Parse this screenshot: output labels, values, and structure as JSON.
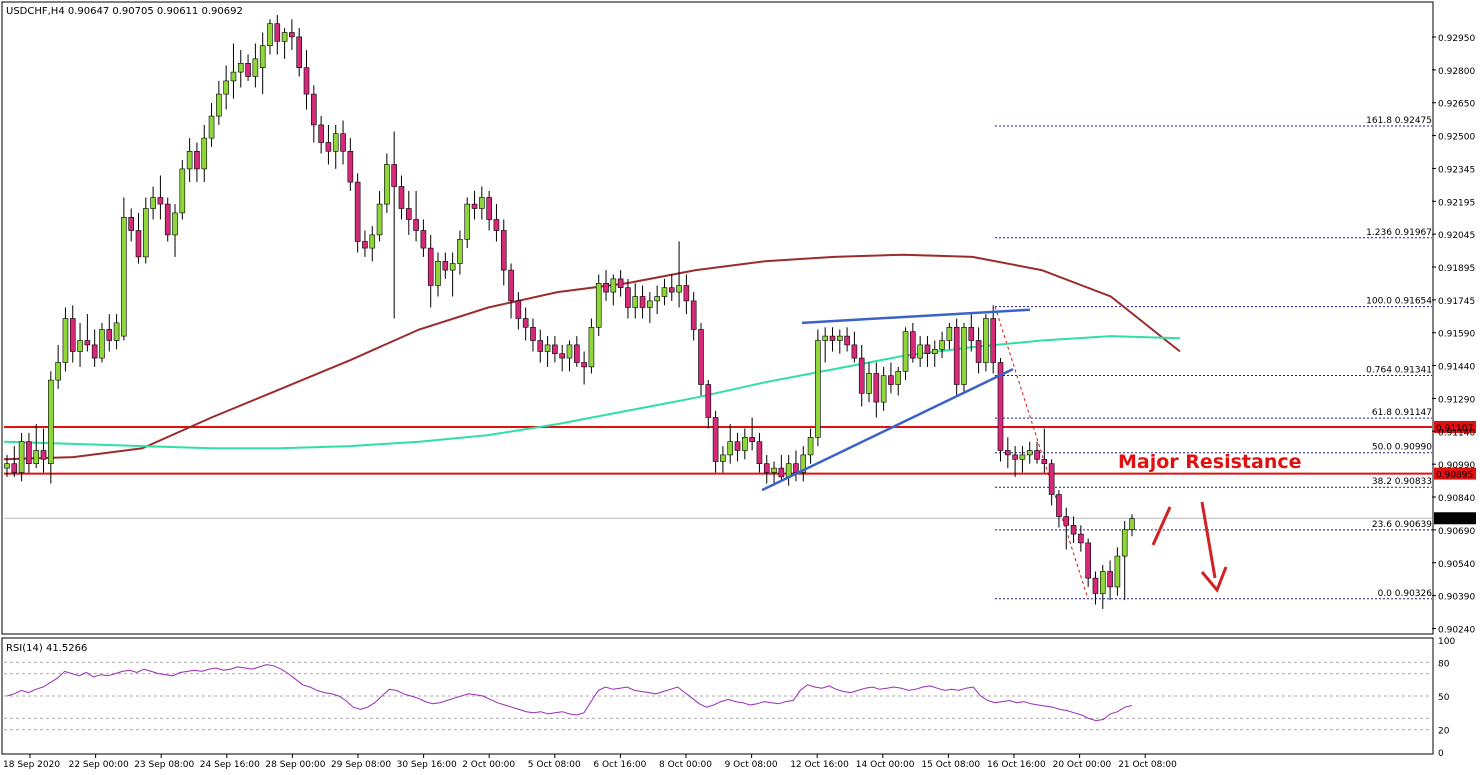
{
  "symbol_header": "USDCHF,H4  0.90647 0.90705 0.90611 0.90692",
  "rsi_header": "RSI(14) 41.5266",
  "colors": {
    "bull": "#8ed63a",
    "bear": "#d6297a",
    "ma_fast": "#30e0a0",
    "ma_slow": "#9b2c2c",
    "resistance": "#e01010",
    "trendline": "#3a62c8",
    "fib": "#1a1a8c",
    "rsi": "#9a2ab8",
    "arrow": "#d42020"
  },
  "annotation": {
    "major_resistance": "Major Resistance"
  },
  "chart_data": {
    "type": "candlestick",
    "symbol": "USDCHF",
    "timeframe": "H4",
    "ylim": [
      0.90175,
      0.93025
    ],
    "y_ticks": [
      "0.92950",
      "0.92800",
      "0.92650",
      "0.92500",
      "0.92345",
      "0.92195",
      "0.92045",
      "0.91895",
      "0.91745",
      "0.91590",
      "0.91440",
      "0.91290",
      "0.91140",
      "0.90990",
      "0.90840",
      "0.90690",
      "0.90540",
      "0.90390",
      "0.90240"
    ],
    "x_labels": [
      "18 Sep 2020",
      "22 Sep 00:00",
      "23 Sep 08:00",
      "24 Sep 16:00",
      "28 Sep 00:00",
      "29 Sep 08:00",
      "30 Sep 16:00",
      "2 Oct 00:00",
      "5 Oct 08:00",
      "6 Oct 16:00",
      "8 Oct 00:00",
      "9 Oct 08:00",
      "12 Oct 16:00",
      "14 Oct 00:00",
      "15 Oct 08:00",
      "16 Oct 16:00",
      "20 Oct 00:00",
      "21 Oct 08:00"
    ],
    "current_price": "0.90692",
    "candles": [
      [
        0.9092,
        0.9098,
        0.9088,
        0.9094
      ],
      [
        0.9094,
        0.9102,
        0.9088,
        0.909
      ],
      [
        0.909,
        0.9108,
        0.9086,
        0.9104
      ],
      [
        0.9104,
        0.9108,
        0.909,
        0.9094
      ],
      [
        0.9094,
        0.9112,
        0.9092,
        0.91
      ],
      [
        0.91,
        0.911,
        0.909,
        0.9096
      ],
      [
        0.9094,
        0.9136,
        0.9085,
        0.9132
      ],
      [
        0.9132,
        0.9148,
        0.9128,
        0.914
      ],
      [
        0.914,
        0.9165,
        0.9136,
        0.916
      ],
      [
        0.916,
        0.9166,
        0.914,
        0.9145
      ],
      [
        0.9145,
        0.9158,
        0.9138,
        0.915
      ],
      [
        0.915,
        0.9162,
        0.9145,
        0.9148
      ],
      [
        0.9148,
        0.9155,
        0.9138,
        0.9142
      ],
      [
        0.9142,
        0.9158,
        0.914,
        0.9155
      ],
      [
        0.9155,
        0.9162,
        0.9145,
        0.915
      ],
      [
        0.915,
        0.9162,
        0.9146,
        0.9158
      ],
      [
        0.9152,
        0.9215,
        0.915,
        0.9206
      ],
      [
        0.9206,
        0.921,
        0.9195,
        0.92
      ],
      [
        0.92,
        0.9208,
        0.9185,
        0.9188
      ],
      [
        0.9188,
        0.9215,
        0.9185,
        0.921
      ],
      [
        0.921,
        0.922,
        0.9205,
        0.9215
      ],
      [
        0.9215,
        0.9225,
        0.9205,
        0.9212
      ],
      [
        0.9212,
        0.9215,
        0.9195,
        0.9198
      ],
      [
        0.9198,
        0.9212,
        0.9188,
        0.9208
      ],
      [
        0.9208,
        0.9232,
        0.9205,
        0.9228
      ],
      [
        0.9228,
        0.9242,
        0.9222,
        0.9236
      ],
      [
        0.9236,
        0.924,
        0.9222,
        0.9228
      ],
      [
        0.9228,
        0.9248,
        0.9222,
        0.9242
      ],
      [
        0.9242,
        0.9258,
        0.9238,
        0.9252
      ],
      [
        0.9252,
        0.9268,
        0.9248,
        0.9262
      ],
      [
        0.9262,
        0.9275,
        0.9255,
        0.9268
      ],
      [
        0.9268,
        0.9285,
        0.926,
        0.9272
      ],
      [
        0.9272,
        0.9282,
        0.9265,
        0.9276
      ],
      [
        0.9276,
        0.928,
        0.9268,
        0.927
      ],
      [
        0.927,
        0.9285,
        0.9265,
        0.9278
      ],
      [
        0.9274,
        0.929,
        0.9262,
        0.9284
      ],
      [
        0.9284,
        0.9296,
        0.928,
        0.9294
      ],
      [
        0.9294,
        0.9298,
        0.928,
        0.9286
      ],
      [
        0.9286,
        0.9292,
        0.9278,
        0.929
      ],
      [
        0.929,
        0.9296,
        0.9282,
        0.9288
      ],
      [
        0.9288,
        0.9292,
        0.927,
        0.9274
      ],
      [
        0.9274,
        0.9282,
        0.9255,
        0.9262
      ],
      [
        0.9262,
        0.9266,
        0.924,
        0.9248
      ],
      [
        0.9248,
        0.9252,
        0.9235,
        0.924
      ],
      [
        0.924,
        0.9248,
        0.923,
        0.9236
      ],
      [
        0.9236,
        0.9248,
        0.9228,
        0.9244
      ],
      [
        0.9244,
        0.925,
        0.923,
        0.9236
      ],
      [
        0.9236,
        0.9242,
        0.9218,
        0.9222
      ],
      [
        0.9222,
        0.9226,
        0.919,
        0.9195
      ],
      [
        0.9195,
        0.92,
        0.9188,
        0.9192
      ],
      [
        0.9192,
        0.9202,
        0.9186,
        0.9198
      ],
      [
        0.9198,
        0.9218,
        0.9195,
        0.9212
      ],
      [
        0.9212,
        0.9235,
        0.9208,
        0.923
      ],
      [
        0.923,
        0.9245,
        0.916,
        0.922
      ],
      [
        0.922,
        0.9225,
        0.9205,
        0.921
      ],
      [
        0.921,
        0.9218,
        0.9198,
        0.9205
      ],
      [
        0.9205,
        0.9218,
        0.9195,
        0.92
      ],
      [
        0.92,
        0.9205,
        0.9188,
        0.9192
      ],
      [
        0.9192,
        0.9198,
        0.9165,
        0.9175
      ],
      [
        0.9175,
        0.919,
        0.917,
        0.9186
      ],
      [
        0.9186,
        0.919,
        0.9178,
        0.9182
      ],
      [
        0.9182,
        0.919,
        0.917,
        0.9185
      ],
      [
        0.9185,
        0.92,
        0.918,
        0.9196
      ],
      [
        0.9196,
        0.9215,
        0.9192,
        0.9212
      ],
      [
        0.9212,
        0.9218,
        0.9205,
        0.921
      ],
      [
        0.921,
        0.922,
        0.9205,
        0.9215
      ],
      [
        0.9215,
        0.9218,
        0.92,
        0.9205
      ],
      [
        0.9205,
        0.9212,
        0.9195,
        0.92
      ],
      [
        0.92,
        0.9205,
        0.9175,
        0.9182
      ],
      [
        0.9182,
        0.9185,
        0.916,
        0.9168
      ],
      [
        0.9168,
        0.9172,
        0.9155,
        0.916
      ],
      [
        0.916,
        0.9165,
        0.915,
        0.9156
      ],
      [
        0.9156,
        0.916,
        0.9145,
        0.915
      ],
      [
        0.915,
        0.9155,
        0.914,
        0.9145
      ],
      [
        0.9145,
        0.9152,
        0.9138,
        0.9148
      ],
      [
        0.9148,
        0.9152,
        0.914,
        0.9144
      ],
      [
        0.9144,
        0.9148,
        0.9136,
        0.9142
      ],
      [
        0.9142,
        0.915,
        0.9136,
        0.9148
      ],
      [
        0.9148,
        0.9152,
        0.9138,
        0.914
      ],
      [
        0.914,
        0.9145,
        0.913,
        0.9138
      ],
      [
        0.9138,
        0.916,
        0.9135,
        0.9156
      ],
      [
        0.9156,
        0.918,
        0.9152,
        0.9176
      ],
      [
        0.9176,
        0.9182,
        0.9168,
        0.9172
      ],
      [
        0.9172,
        0.918,
        0.9166,
        0.9178
      ],
      [
        0.9178,
        0.9182,
        0.917,
        0.9174
      ],
      [
        0.9174,
        0.9178,
        0.916,
        0.9165
      ],
      [
        0.9165,
        0.9176,
        0.916,
        0.917
      ],
      [
        0.917,
        0.9175,
        0.916,
        0.9165
      ],
      [
        0.9165,
        0.9172,
        0.9158,
        0.9168
      ],
      [
        0.9168,
        0.9175,
        0.9162,
        0.917
      ],
      [
        0.917,
        0.9178,
        0.9166,
        0.9174
      ],
      [
        0.9174,
        0.918,
        0.9168,
        0.9172
      ],
      [
        0.9172,
        0.9195,
        0.9165,
        0.9175
      ],
      [
        0.9175,
        0.918,
        0.9162,
        0.9168
      ],
      [
        0.9168,
        0.9172,
        0.915,
        0.9155
      ],
      [
        0.9155,
        0.9158,
        0.9125,
        0.913
      ],
      [
        0.913,
        0.9132,
        0.911,
        0.9115
      ],
      [
        0.9115,
        0.9118,
        0.909,
        0.9095
      ],
      [
        0.9095,
        0.9102,
        0.909,
        0.9098
      ],
      [
        0.9098,
        0.9112,
        0.9094,
        0.9104
      ],
      [
        0.9104,
        0.9108,
        0.9095,
        0.91
      ],
      [
        0.91,
        0.911,
        0.9096,
        0.9106
      ],
      [
        0.9106,
        0.9115,
        0.91,
        0.9104
      ],
      [
        0.9104,
        0.9108,
        0.909,
        0.9094
      ],
      [
        0.9094,
        0.9098,
        0.9085,
        0.909
      ],
      [
        0.909,
        0.9095,
        0.9084,
        0.9092
      ],
      [
        0.9092,
        0.9098,
        0.9086,
        0.9088
      ],
      [
        0.9088,
        0.9098,
        0.9084,
        0.9094
      ],
      [
        0.9094,
        0.91,
        0.9086,
        0.909
      ],
      [
        0.909,
        0.9102,
        0.9086,
        0.9098
      ],
      [
        0.9098,
        0.911,
        0.9094,
        0.9106
      ],
      [
        0.9106,
        0.9155,
        0.9102,
        0.915
      ],
      [
        0.915,
        0.9156,
        0.914,
        0.9152
      ],
      [
        0.9152,
        0.9156,
        0.9145,
        0.915
      ],
      [
        0.915,
        0.9155,
        0.9144,
        0.9152
      ],
      [
        0.9152,
        0.9156,
        0.9145,
        0.9148
      ],
      [
        0.9148,
        0.9154,
        0.914,
        0.9142
      ],
      [
        0.9142,
        0.9148,
        0.912,
        0.9126
      ],
      [
        0.9126,
        0.914,
        0.9122,
        0.9135
      ],
      [
        0.9135,
        0.914,
        0.9115,
        0.9122
      ],
      [
        0.9122,
        0.9138,
        0.9118,
        0.9134
      ],
      [
        0.9134,
        0.914,
        0.9126,
        0.913
      ],
      [
        0.913,
        0.9138,
        0.9125,
        0.9136
      ],
      [
        0.9136,
        0.9156,
        0.9132,
        0.9154
      ],
      [
        0.9154,
        0.9158,
        0.914,
        0.9142
      ],
      [
        0.9142,
        0.9152,
        0.9138,
        0.9148
      ],
      [
        0.9148,
        0.9152,
        0.9138,
        0.9144
      ],
      [
        0.9144,
        0.915,
        0.9138,
        0.9146
      ],
      [
        0.9146,
        0.9154,
        0.9142,
        0.915
      ],
      [
        0.915,
        0.9158,
        0.9146,
        0.9156
      ],
      [
        0.9156,
        0.916,
        0.9125,
        0.913
      ],
      [
        0.913,
        0.9158,
        0.9126,
        0.9156
      ],
      [
        0.9156,
        0.9162,
        0.9145,
        0.915
      ],
      [
        0.915,
        0.9156,
        0.9135,
        0.914
      ],
      [
        0.914,
        0.9162,
        0.9136,
        0.916
      ],
      [
        0.916,
        0.9166,
        0.9135,
        0.914
      ],
      [
        0.914,
        0.9142,
        0.9095,
        0.91
      ],
      [
        0.91,
        0.9106,
        0.9092,
        0.9098
      ],
      [
        0.9098,
        0.9102,
        0.9088,
        0.9096
      ],
      [
        0.9096,
        0.9102,
        0.909,
        0.9098
      ],
      [
        0.9098,
        0.9104,
        0.9094,
        0.91
      ],
      [
        0.91,
        0.9104,
        0.9094,
        0.9096
      ],
      [
        0.9096,
        0.911,
        0.909,
        0.9094
      ],
      [
        0.9094,
        0.9096,
        0.9075,
        0.908
      ],
      [
        0.908,
        0.9082,
        0.9065,
        0.907
      ],
      [
        0.907,
        0.9074,
        0.9055,
        0.9066
      ],
      [
        0.9066,
        0.907,
        0.9058,
        0.9062
      ],
      [
        0.9062,
        0.9066,
        0.9054,
        0.9058
      ],
      [
        0.9058,
        0.906,
        0.9038,
        0.9042
      ],
      [
        0.9042,
        0.9045,
        0.903,
        0.9035
      ],
      [
        0.9035,
        0.9048,
        0.9028,
        0.9045
      ],
      [
        0.9045,
        0.905,
        0.9032,
        0.9038
      ],
      [
        0.9038,
        0.9056,
        0.9034,
        0.9052
      ],
      [
        0.9052,
        0.9068,
        0.9032,
        0.9064
      ],
      [
        0.9064,
        0.9071,
        0.9061,
        0.9069
      ]
    ],
    "rsi_levels": [
      80,
      70,
      50,
      30,
      20
    ],
    "rsi_axis_ticks": [
      "100",
      "80",
      "50",
      "20",
      "0"
    ],
    "rsi_values": [
      50,
      52,
      55,
      53,
      56,
      58,
      62,
      66,
      72,
      70,
      68,
      71,
      67,
      69,
      68,
      70,
      72,
      73,
      71,
      74,
      72,
      70,
      69,
      68,
      71,
      72,
      73,
      72,
      74,
      75,
      73,
      74,
      76,
      75,
      74,
      76,
      78,
      77,
      74,
      70,
      65,
      60,
      58,
      55,
      53,
      52,
      50,
      46,
      40,
      38,
      40,
      44,
      50,
      56,
      55,
      52,
      50,
      48,
      45,
      43,
      44,
      46,
      48,
      50,
      52,
      51,
      50,
      47,
      44,
      42,
      40,
      38,
      36,
      35,
      36,
      34,
      35,
      36,
      34,
      33,
      35,
      45,
      55,
      58,
      56,
      57,
      58,
      55,
      54,
      53,
      52,
      54,
      56,
      58,
      53,
      48,
      43,
      40,
      42,
      45,
      47,
      45,
      44,
      42,
      43,
      45,
      44,
      43,
      45,
      46,
      55,
      60,
      58,
      57,
      59,
      56,
      54,
      53,
      55,
      57,
      58,
      56,
      57,
      58,
      57,
      55,
      56,
      58,
      59,
      57,
      55,
      56,
      55,
      57,
      58,
      50,
      46,
      44,
      45,
      46,
      44,
      45,
      43,
      42,
      41,
      40,
      38,
      37,
      35,
      33,
      30,
      28,
      29,
      34,
      36,
      40,
      41.5
    ],
    "ma_fast": [
      0.9104,
      0.9103,
      0.9102,
      0.9101,
      0.9101,
      0.9102,
      0.9104,
      0.9107,
      0.9112,
      0.9118,
      0.9124,
      0.9131,
      0.9137,
      0.9143,
      0.9147,
      0.915,
      0.9152,
      0.9151
    ],
    "ma_slow": [
      0.9096,
      0.9097,
      0.9101,
      0.9115,
      0.9128,
      0.9141,
      0.9155,
      0.9165,
      0.9172,
      0.9176,
      0.9182,
      0.9186,
      0.9188,
      0.9189,
      0.9188,
      0.9182,
      0.917,
      0.9145
    ],
    "fibonacci": [
      {
        "label": "161.8",
        "value": 0.92475
      },
      {
        "label": "1.236",
        "value": 0.91967
      },
      {
        "label": "100.0",
        "value": 0.91654
      },
      {
        "label": "0.764",
        "value": 0.91341
      },
      {
        "label": "61.8",
        "value": 0.91147
      },
      {
        "label": "50.0",
        "value": 0.9099
      },
      {
        "label": "38.2",
        "value": 0.90833
      },
      {
        "label": "23.6",
        "value": 0.90639
      },
      {
        "label": "0.0",
        "value": 0.90326
      }
    ],
    "resistance_levels": [
      {
        "label": "0.91107",
        "value": 0.91107
      },
      {
        "label": "0.90895",
        "value": 0.90895
      }
    ],
    "trend_lines": [
      {
        "name": "support-trendline",
        "points": [
          [
            0.9082,
            0.9082
          ],
          [
            0.9137,
            0.9137
          ]
        ]
      },
      {
        "name": "resistance-trendline",
        "points": [
          [
            0.9158,
            0.9158
          ],
          [
            0.9164,
            0.9164
          ]
        ]
      }
    ]
  }
}
